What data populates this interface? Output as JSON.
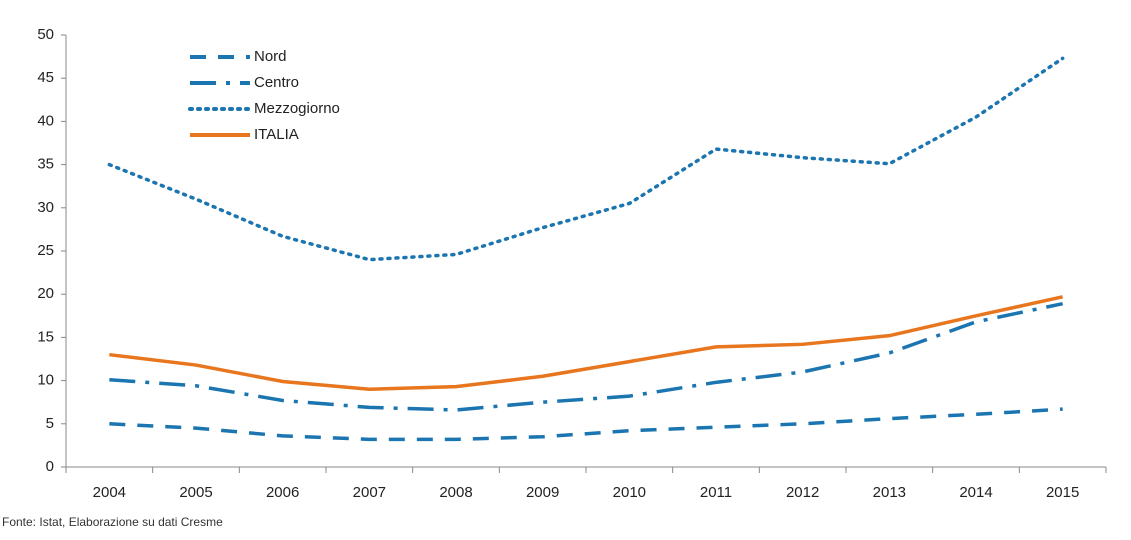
{
  "chart_data": {
    "type": "line",
    "categories": [
      "2004",
      "2005",
      "2006",
      "2007",
      "2008",
      "2009",
      "2010",
      "2011",
      "2012",
      "2013",
      "2014",
      "2015"
    ],
    "series": [
      {
        "name": "Nord",
        "color": "#1b75b0",
        "style": "dashed",
        "values": [
          5.0,
          4.5,
          3.6,
          3.2,
          3.2,
          3.5,
          4.2,
          4.6,
          5.0,
          5.6,
          6.1,
          6.7
        ]
      },
      {
        "name": "Centro",
        "color": "#1b75b0",
        "style": "dashdot",
        "values": [
          10.1,
          9.4,
          7.7,
          6.9,
          6.6,
          7.5,
          8.2,
          9.8,
          11.0,
          13.2,
          16.8,
          18.9
        ]
      },
      {
        "name": "Mezzogiorno",
        "color": "#1b75b0",
        "style": "dotted",
        "values": [
          35.0,
          31.0,
          26.7,
          24.0,
          24.6,
          27.7,
          30.5,
          36.8,
          35.8,
          35.1,
          40.5,
          47.3
        ]
      },
      {
        "name": "ITALIA",
        "color": "#e8761e",
        "style": "solid",
        "values": [
          13.0,
          11.8,
          9.9,
          9.0,
          9.3,
          10.5,
          12.2,
          13.9,
          14.2,
          15.2,
          17.5,
          19.7
        ]
      }
    ],
    "ylim": [
      0,
      50
    ],
    "yticks": [
      0,
      5,
      10,
      15,
      20,
      25,
      30,
      35,
      40,
      45,
      50
    ],
    "grid": false,
    "legend": "upper-left",
    "source": "Fonte: Istat, Elaborazione su dati Cresme"
  }
}
